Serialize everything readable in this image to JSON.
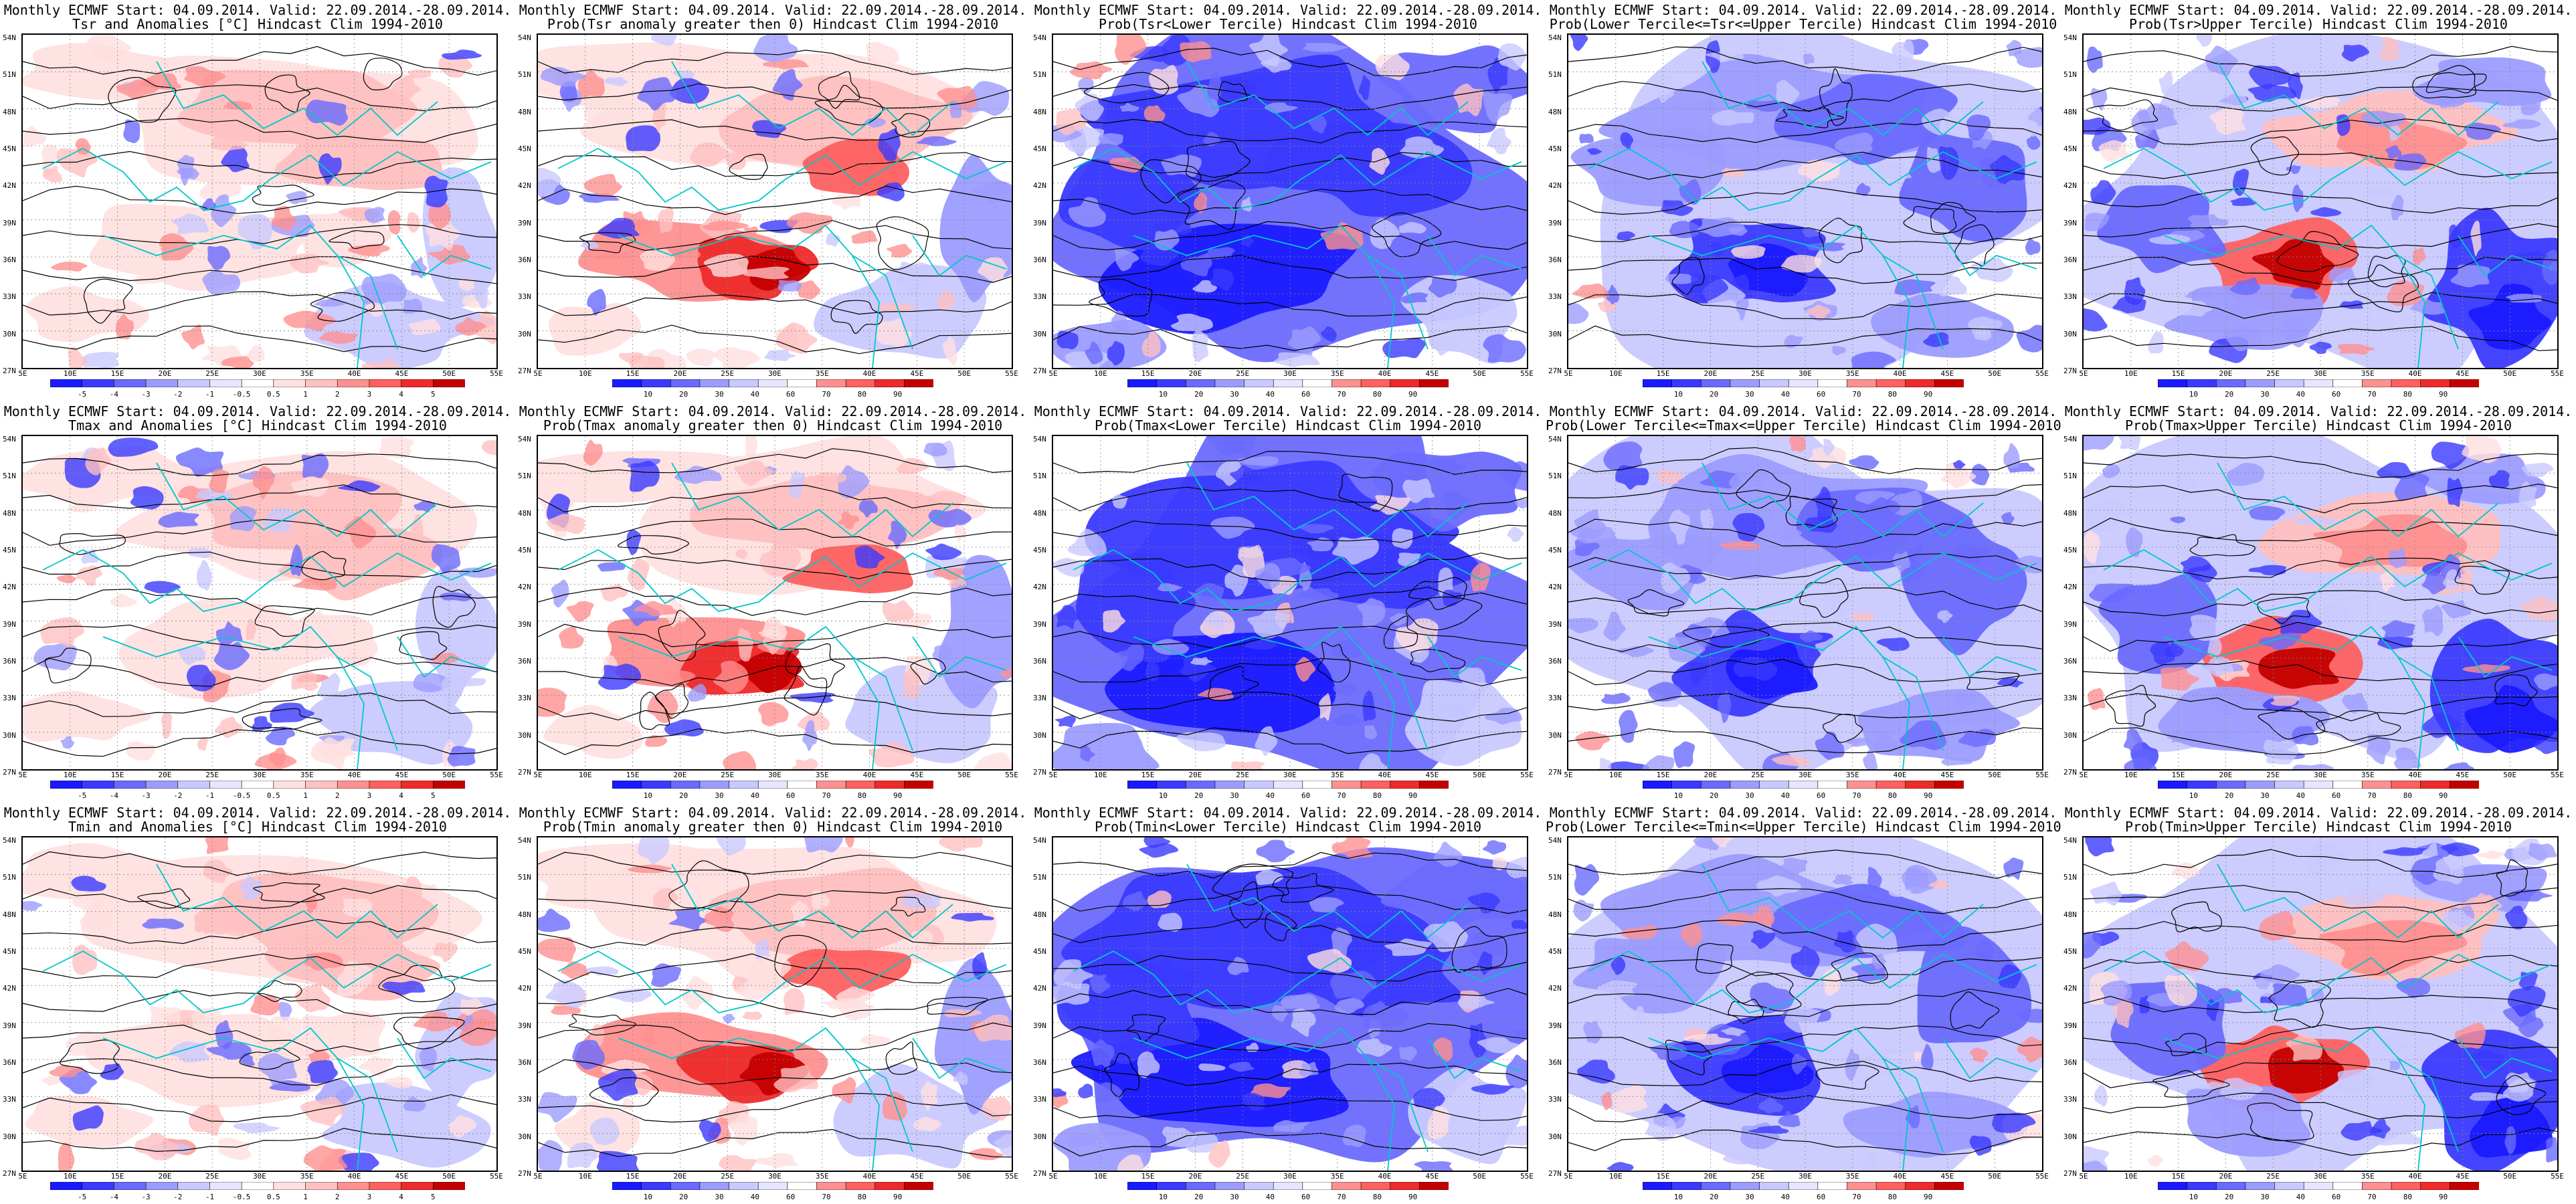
{
  "colors": {
    "blue_scale": [
      "#1a1aff",
      "#3a3aff",
      "#6a6aff",
      "#9c9cff",
      "#c9c9ff",
      "#e6e6ff"
    ],
    "red_scale": [
      "#ffe0e0",
      "#ffc0c0",
      "#ff9090",
      "#ff6060",
      "#ee2a2a",
      "#c40000"
    ],
    "contour": "#000000",
    "coastline": "#00c8c8"
  },
  "map_axes": {
    "lat_labels": [
      "54N",
      "51N",
      "48N",
      "45N",
      "42N",
      "39N",
      "36N",
      "33N",
      "30N",
      "27N"
    ],
    "lon_labels": [
      "5E",
      "10E",
      "15E",
      "20E",
      "25E",
      "30E",
      "35E",
      "40E",
      "45E",
      "50E",
      "55E"
    ]
  },
  "colorbars": {
    "anomaly": [
      "-5",
      "-4",
      "-3",
      "-2",
      "-1",
      "-0.5",
      "0.5",
      "1",
      "2",
      "3",
      "4",
      "5"
    ],
    "probability": [
      "10",
      "20",
      "30",
      "40",
      "60",
      "70",
      "80",
      "90"
    ]
  },
  "panels": [
    {
      "title1": "Monthly ECMWF Start: 04.09.2014. Valid: 22.09.2014.-28.09.2014.",
      "title2": "Tsr and Anomalies [°C] Hindcast Clim 1994-2010",
      "type": "anomaly",
      "row": 0,
      "col": 0
    },
    {
      "title1": "Monthly ECMWF Start: 04.09.2014. Valid: 22.09.2014.-28.09.2014.",
      "title2": "Prob(Tsr anomaly greater then 0) Hindcast Clim 1994-2010",
      "type": "prob_above",
      "row": 0,
      "col": 1
    },
    {
      "title1": "Monthly ECMWF Start: 04.09.2014. Valid: 22.09.2014.-28.09.2014.",
      "title2": "Prob(Tsr<Lower Tercile) Hindcast Clim 1994-2010",
      "type": "prob_lower",
      "row": 0,
      "col": 2
    },
    {
      "title1": "Monthly ECMWF Start: 04.09.2014. Valid: 22.09.2014.-28.09.2014.",
      "title2": "Prob(Lower Tercile<=Tsr<=Upper Tercile) Hindcast Clim 1994-2010",
      "type": "prob_middle",
      "row": 0,
      "col": 3
    },
    {
      "title1": "Monthly ECMWF Start: 04.09.2014. Valid: 22.09.2014.-28.09.2014.",
      "title2": "Prob(Tsr>Upper Tercile) Hindcast Clim 1994-2010",
      "type": "prob_upper",
      "row": 0,
      "col": 4
    },
    {
      "title1": "Monthly ECMWF Start: 04.09.2014. Valid: 22.09.2014.-28.09.2014.",
      "title2": "Tmax and Anomalies [°C] Hindcast Clim 1994-2010",
      "type": "anomaly",
      "row": 1,
      "col": 0
    },
    {
      "title1": "Monthly ECMWF Start: 04.09.2014. Valid: 22.09.2014.-28.09.2014.",
      "title2": "Prob(Tmax anomaly greater then 0) Hindcast Clim 1994-2010",
      "type": "prob_above",
      "row": 1,
      "col": 1
    },
    {
      "title1": "Monthly ECMWF Start: 04.09.2014. Valid: 22.09.2014.-28.09.2014.",
      "title2": "Prob(Tmax<Lower Tercile) Hindcast Clim 1994-2010",
      "type": "prob_lower",
      "row": 1,
      "col": 2
    },
    {
      "title1": "Monthly ECMWF Start: 04.09.2014. Valid: 22.09.2014.-28.09.2014.",
      "title2": "Prob(Lower Tercile<=Tmax<=Upper Tercile) Hindcast Clim 1994-2010",
      "type": "prob_middle",
      "row": 1,
      "col": 3
    },
    {
      "title1": "Monthly ECMWF Start: 04.09.2014. Valid: 22.09.2014.-28.09.2014.",
      "title2": "Prob(Tmax>Upper Tercile) Hindcast Clim 1994-2010",
      "type": "prob_upper",
      "row": 1,
      "col": 4
    },
    {
      "title1": "Monthly ECMWF Start: 04.09.2014. Valid: 22.09.2014.-28.09.2014.",
      "title2": "Tmin and Anomalies [°C] Hindcast Clim 1994-2010",
      "type": "anomaly",
      "row": 2,
      "col": 0
    },
    {
      "title1": "Monthly ECMWF Start: 04.09.2014. Valid: 22.09.2014.-28.09.2014.",
      "title2": "Prob(Tmin anomaly greater then 0) Hindcast Clim 1994-2010",
      "type": "prob_above",
      "row": 2,
      "col": 1
    },
    {
      "title1": "Monthly ECMWF Start: 04.09.2014. Valid: 22.09.2014.-28.09.2014.",
      "title2": "Prob(Tmin<Lower Tercile) Hindcast Clim 1994-2010",
      "type": "prob_lower",
      "row": 2,
      "col": 2
    },
    {
      "title1": "Monthly ECMWF Start: 04.09.2014. Valid: 22.09.2014.-28.09.2014.",
      "title2": "Prob(Lower Tercile<=Tmin<=Upper Tercile) Hindcast Clim 1994-2010",
      "type": "prob_middle",
      "row": 2,
      "col": 3
    },
    {
      "title1": "Monthly ECMWF Start: 04.09.2014. Valid: 22.09.2014.-28.09.2014.",
      "title2": "Prob(Tmin>Upper Tercile) Hindcast Clim 1994-2010",
      "type": "prob_upper",
      "row": 2,
      "col": 4
    }
  ]
}
